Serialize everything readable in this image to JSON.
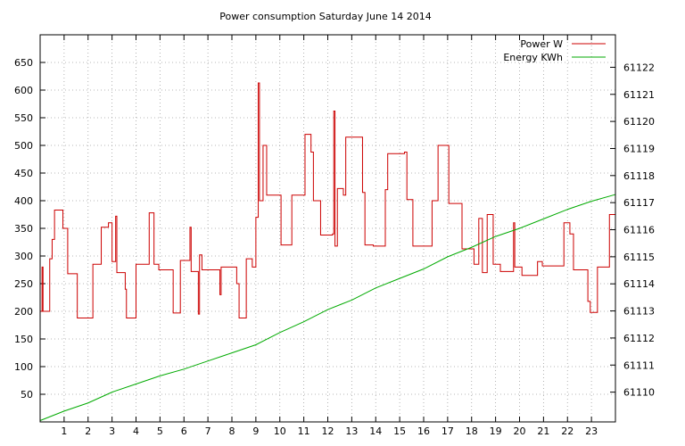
{
  "chart_data": {
    "type": "line",
    "title": "Power consumption Saturday June 14 2014",
    "xlabel": "",
    "ylabel": "",
    "y2label": "",
    "xlim": [
      0,
      24
    ],
    "ylim": [
      0,
      700
    ],
    "y2lim": [
      61108.9,
      61123.2
    ],
    "x_ticks": [
      1,
      2,
      3,
      4,
      5,
      6,
      7,
      8,
      9,
      10,
      11,
      12,
      13,
      14,
      15,
      16,
      17,
      18,
      19,
      20,
      21,
      22,
      23
    ],
    "y_ticks": [
      50,
      100,
      150,
      200,
      250,
      300,
      350,
      400,
      450,
      500,
      550,
      600,
      650
    ],
    "y2_ticks": [
      61110,
      61111,
      61112,
      61113,
      61114,
      61115,
      61116,
      61117,
      61118,
      61119,
      61120,
      61121,
      61122
    ],
    "grid": true,
    "legend_position": "top-right",
    "series": [
      {
        "name": "Power W",
        "axis": "left",
        "color": "#cc0000",
        "step": true,
        "points": [
          [
            0.0,
            200
          ],
          [
            0.08,
            280
          ],
          [
            0.12,
            200
          ],
          [
            0.4,
            295
          ],
          [
            0.5,
            330
          ],
          [
            0.6,
            383
          ],
          [
            0.95,
            350
          ],
          [
            1.15,
            268
          ],
          [
            1.55,
            188
          ],
          [
            2.2,
            285
          ],
          [
            2.55,
            352
          ],
          [
            2.85,
            360
          ],
          [
            3.0,
            290
          ],
          [
            3.15,
            372
          ],
          [
            3.2,
            270
          ],
          [
            3.55,
            240
          ],
          [
            3.6,
            188
          ],
          [
            4.0,
            285
          ],
          [
            4.55,
            378
          ],
          [
            4.75,
            285
          ],
          [
            4.95,
            275
          ],
          [
            5.55,
            197
          ],
          [
            5.85,
            292
          ],
          [
            6.25,
            352
          ],
          [
            6.3,
            272
          ],
          [
            6.6,
            195
          ],
          [
            6.65,
            302
          ],
          [
            6.75,
            275
          ],
          [
            7.5,
            230
          ],
          [
            7.55,
            280
          ],
          [
            8.2,
            250
          ],
          [
            8.3,
            188
          ],
          [
            8.6,
            295
          ],
          [
            8.85,
            280
          ],
          [
            9.0,
            370
          ],
          [
            9.1,
            613
          ],
          [
            9.15,
            400
          ],
          [
            9.3,
            500
          ],
          [
            9.45,
            410
          ],
          [
            10.05,
            320
          ],
          [
            10.5,
            410
          ],
          [
            11.05,
            520
          ],
          [
            11.3,
            488
          ],
          [
            11.4,
            400
          ],
          [
            11.7,
            338
          ],
          [
            12.2,
            340
          ],
          [
            12.25,
            562
          ],
          [
            12.3,
            318
          ],
          [
            12.4,
            422
          ],
          [
            12.65,
            410
          ],
          [
            12.75,
            515
          ],
          [
            13.45,
            415
          ],
          [
            13.55,
            320
          ],
          [
            13.9,
            318
          ],
          [
            14.4,
            420
          ],
          [
            14.5,
            485
          ],
          [
            15.2,
            488
          ],
          [
            15.3,
            402
          ],
          [
            15.55,
            318
          ],
          [
            16.35,
            400
          ],
          [
            16.6,
            500
          ],
          [
            17.05,
            395
          ],
          [
            17.6,
            313
          ],
          [
            18.1,
            285
          ],
          [
            18.3,
            368
          ],
          [
            18.45,
            270
          ],
          [
            18.65,
            375
          ],
          [
            18.9,
            285
          ],
          [
            19.2,
            272
          ],
          [
            19.75,
            360
          ],
          [
            19.8,
            280
          ],
          [
            20.1,
            265
          ],
          [
            20.75,
            290
          ],
          [
            20.95,
            282
          ],
          [
            21.85,
            360
          ],
          [
            22.1,
            340
          ],
          [
            22.25,
            275
          ],
          [
            22.85,
            218
          ],
          [
            22.95,
            198
          ],
          [
            23.25,
            280
          ],
          [
            23.75,
            375
          ],
          [
            24.0,
            375
          ]
        ]
      },
      {
        "name": "Energy KWh",
        "axis": "right",
        "color": "#00aa00",
        "step": false,
        "points": [
          [
            0,
            61108.95
          ],
          [
            1,
            61109.3
          ],
          [
            2,
            61109.6
          ],
          [
            3,
            61110.0
          ],
          [
            4,
            61110.3
          ],
          [
            5,
            61110.6
          ],
          [
            6,
            61110.85
          ],
          [
            7,
            61111.15
          ],
          [
            8,
            61111.45
          ],
          [
            9,
            61111.75
          ],
          [
            10,
            61112.2
          ],
          [
            11,
            61112.6
          ],
          [
            12,
            61113.05
          ],
          [
            13,
            61113.4
          ],
          [
            14,
            61113.85
          ],
          [
            15,
            61114.2
          ],
          [
            16,
            61114.55
          ],
          [
            17,
            61115.0
          ],
          [
            18,
            61115.35
          ],
          [
            19,
            61115.75
          ],
          [
            20,
            61116.05
          ],
          [
            21,
            61116.4
          ],
          [
            22,
            61116.75
          ],
          [
            23,
            61117.05
          ],
          [
            24,
            61117.3
          ]
        ]
      }
    ]
  }
}
